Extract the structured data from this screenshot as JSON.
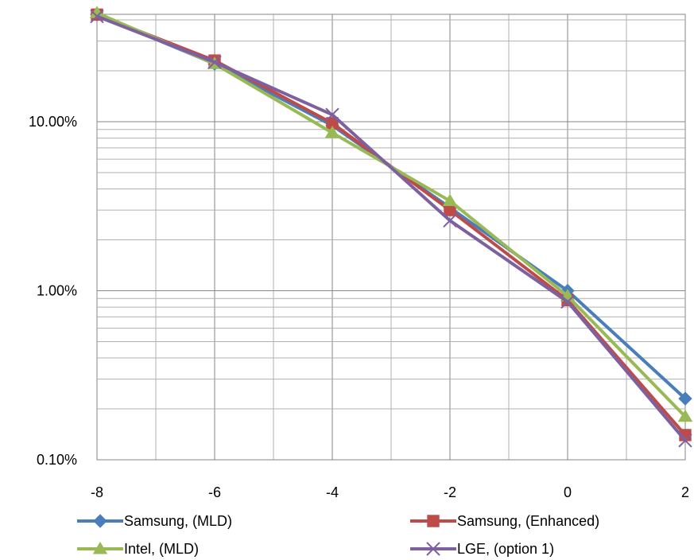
{
  "chart_data": {
    "type": "line",
    "title": "",
    "xlabel": "",
    "ylabel": "",
    "x": [
      -8,
      -6,
      -4,
      -2,
      0,
      2
    ],
    "xlim": [
      -8,
      2
    ],
    "x_ticks": [
      "-8",
      "-6",
      "-4",
      "-2",
      "0",
      "2"
    ],
    "y_scale": "log",
    "y_unit": "percent",
    "ylim": [
      0.1,
      50
    ],
    "y_ticks": [
      {
        "value": 10,
        "label": "10.00%"
      },
      {
        "value": 1,
        "label": "1.00%"
      },
      {
        "value": 0.1,
        "label": "0.10%"
      }
    ],
    "grid": true,
    "legend_position": "bottom",
    "series": [
      {
        "name": "Samsung, (MLD)",
        "color": "#4A7EBB",
        "marker": "diamond",
        "values": [
          43,
          22,
          9.5,
          3.1,
          1.0,
          0.23
        ]
      },
      {
        "name": "Samsung, (Enhanced)",
        "color": "#BE4B48",
        "marker": "square",
        "values": [
          43,
          23,
          9.8,
          3.0,
          0.88,
          0.14
        ]
      },
      {
        "name": "Intel, (MLD)",
        "color": "#98B954",
        "marker": "triangle",
        "values": [
          44,
          22,
          8.6,
          3.4,
          0.93,
          0.18
        ]
      },
      {
        "name": "LGE, (option 1)",
        "color": "#7D60A0",
        "marker": "x",
        "values": [
          42,
          22.5,
          11,
          2.6,
          0.86,
          0.13
        ]
      }
    ]
  }
}
